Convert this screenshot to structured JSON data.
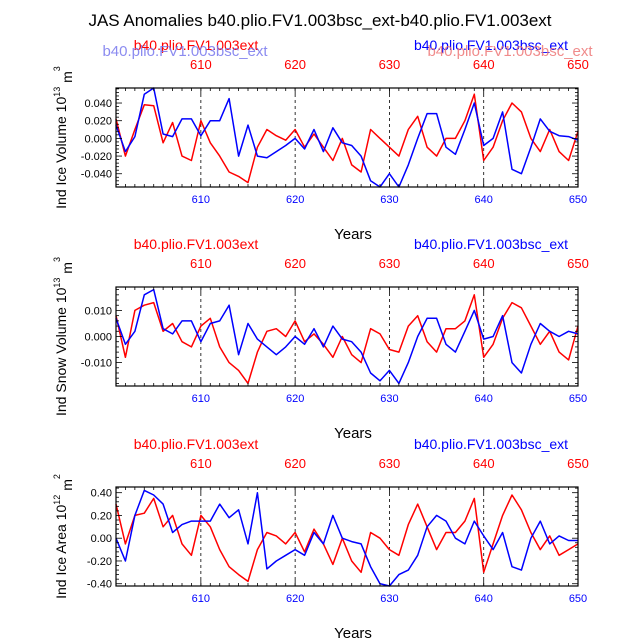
{
  "title": "JAS Anomalies b40.plio.FV1.003bsc_ext-b40.plio.FV1.003ext",
  "overlay_labels": {
    "red_faded": "b40.plio.FV1.003bsc_ext",
    "blue_faded": "b40.plio.FV1.003bsc_ext"
  },
  "colors": {
    "red": "#ff0000",
    "blue": "#0000ff",
    "axis": "#000000",
    "grid": "#000000"
  },
  "chart_data": [
    {
      "type": "line",
      "panel": "ice-volume",
      "left_label": "b40.plio.FV1.003ext",
      "right_label": "b40.plio.FV1.003bsc_ext",
      "ylabel_main": "Ind Ice Volume 10",
      "ylabel_exp": "13",
      "ylabel_unit": "m",
      "ylabel_unit_exp": "3",
      "xlabel": "Years",
      "xlim": [
        601,
        650
      ],
      "ylim": [
        -0.055,
        0.057
      ],
      "yticks": [
        -0.04,
        -0.02,
        0.0,
        0.02,
        0.04
      ],
      "ytick_labels": [
        "-0.040",
        "-0.020",
        "0.000",
        "0.020",
        "0.040"
      ],
      "xticks": [
        610,
        620,
        630,
        640,
        650
      ],
      "xtick_labels": [
        "610",
        "620",
        "630",
        "640",
        "650"
      ],
      "vlines": [
        610,
        620,
        630,
        640
      ],
      "x": [
        601,
        602,
        603,
        604,
        605,
        606,
        607,
        608,
        609,
        610,
        611,
        612,
        613,
        614,
        615,
        616,
        617,
        618,
        619,
        620,
        621,
        622,
        623,
        624,
        625,
        626,
        627,
        628,
        629,
        630,
        631,
        632,
        633,
        634,
        635,
        636,
        637,
        638,
        639,
        640,
        641,
        642,
        643,
        644,
        645,
        646,
        647,
        648,
        649,
        650
      ],
      "series": [
        {
          "name": "b40.plio.FV1.003ext",
          "color": "#ff0000",
          "values": [
            0.022,
            -0.02,
            0.01,
            0.038,
            0.037,
            -0.005,
            0.018,
            -0.02,
            -0.025,
            0.02,
            -0.005,
            -0.02,
            -0.038,
            -0.043,
            -0.05,
            -0.01,
            0.01,
            0.003,
            -0.002,
            0.01,
            -0.01,
            0.005,
            -0.01,
            -0.025,
            0.0,
            -0.03,
            -0.038,
            0.01,
            0.0,
            -0.01,
            -0.02,
            0.01,
            0.025,
            -0.01,
            -0.02,
            0.0,
            0.0,
            0.02,
            0.05,
            -0.025,
            -0.01,
            0.02,
            0.04,
            0.03,
            0.0,
            -0.015,
            0.01,
            -0.015,
            -0.025,
            0.008
          ]
        },
        {
          "name": "b40.plio.FV1.003bsc_ext",
          "color": "#0000ff",
          "values": [
            0.015,
            -0.015,
            0.002,
            0.05,
            0.057,
            0.005,
            0.002,
            0.022,
            0.022,
            0.003,
            0.02,
            0.02,
            0.045,
            -0.02,
            0.015,
            -0.02,
            -0.022,
            -0.015,
            -0.008,
            0.0,
            -0.012,
            0.01,
            -0.015,
            0.012,
            -0.005,
            -0.008,
            -0.02,
            -0.048,
            -0.055,
            -0.04,
            -0.055,
            -0.03,
            0.0,
            0.028,
            0.028,
            -0.01,
            -0.018,
            0.01,
            0.04,
            -0.008,
            0.0,
            0.03,
            -0.035,
            -0.04,
            -0.01,
            0.022,
            0.008,
            0.003,
            0.002,
            -0.002
          ]
        }
      ]
    },
    {
      "type": "line",
      "panel": "snow-volume",
      "left_label": "b40.plio.FV1.003ext",
      "right_label": "b40.plio.FV1.003bsc_ext",
      "ylabel_main": "Ind Snow Volume 10",
      "ylabel_exp": "13",
      "ylabel_unit": "m",
      "ylabel_unit_exp": "3",
      "xlabel": "Years",
      "xlim": [
        601,
        650
      ],
      "ylim": [
        -0.019,
        0.019
      ],
      "yticks": [
        -0.01,
        0.0,
        0.01
      ],
      "ytick_labels": [
        "-0.010",
        "0.000",
        "0.010"
      ],
      "xticks": [
        610,
        620,
        630,
        640,
        650
      ],
      "xtick_labels": [
        "610",
        "620",
        "630",
        "640",
        "650"
      ],
      "vlines": [
        610,
        620,
        630,
        640
      ],
      "x": [
        601,
        602,
        603,
        604,
        605,
        606,
        607,
        608,
        609,
        610,
        611,
        612,
        613,
        614,
        615,
        616,
        617,
        618,
        619,
        620,
        621,
        622,
        623,
        624,
        625,
        626,
        627,
        628,
        629,
        630,
        631,
        632,
        633,
        634,
        635,
        636,
        637,
        638,
        639,
        640,
        641,
        642,
        643,
        644,
        645,
        646,
        647,
        648,
        649,
        650
      ],
      "series": [
        {
          "name": "b40.plio.FV1.003ext",
          "color": "#ff0000",
          "values": [
            0.008,
            -0.008,
            0.01,
            0.012,
            0.013,
            0.002,
            0.005,
            -0.002,
            -0.004,
            0.004,
            0.007,
            -0.004,
            -0.01,
            -0.013,
            -0.018,
            -0.006,
            0.002,
            0.003,
            0.0,
            0.006,
            -0.002,
            0.001,
            -0.003,
            -0.008,
            0.0,
            -0.007,
            -0.01,
            0.003,
            0.001,
            -0.005,
            -0.006,
            0.004,
            0.008,
            -0.002,
            -0.006,
            0.003,
            0.003,
            0.006,
            0.016,
            -0.008,
            -0.003,
            0.007,
            0.013,
            0.011,
            0.004,
            -0.003,
            0.002,
            -0.006,
            -0.009,
            0.004
          ]
        },
        {
          "name": "b40.plio.FV1.003bsc_ext",
          "color": "#0000ff",
          "values": [
            0.007,
            -0.003,
            0.002,
            0.016,
            0.018,
            0.003,
            0.001,
            0.006,
            0.006,
            -0.002,
            0.005,
            0.006,
            0.012,
            -0.007,
            0.005,
            -0.001,
            -0.004,
            -0.007,
            -0.004,
            0.0,
            -0.003,
            0.003,
            -0.004,
            0.004,
            -0.001,
            -0.002,
            -0.006,
            -0.014,
            -0.017,
            -0.013,
            -0.018,
            -0.01,
            0.0,
            0.007,
            0.007,
            -0.003,
            -0.006,
            0.002,
            0.01,
            -0.001,
            0.0,
            0.008,
            -0.01,
            -0.014,
            -0.003,
            0.005,
            0.002,
            0.0,
            0.002,
            0.001
          ]
        }
      ]
    },
    {
      "type": "line",
      "panel": "ice-area",
      "left_label": "b40.plio.FV1.003ext",
      "right_label": "b40.plio.FV1.003bsc_ext",
      "ylabel_main": "Ind Ice Area 10",
      "ylabel_exp": "12",
      "ylabel_unit": "m",
      "ylabel_unit_exp": "2",
      "xlabel": "Years",
      "xlim": [
        601,
        650
      ],
      "ylim": [
        -0.42,
        0.45
      ],
      "yticks": [
        -0.4,
        -0.2,
        0.0,
        0.2,
        0.4
      ],
      "ytick_labels": [
        "-0.40",
        "-0.20",
        "0.00",
        "0.20",
        "0.40"
      ],
      "xticks": [
        610,
        620,
        630,
        640,
        650
      ],
      "xtick_labels": [
        "610",
        "620",
        "630",
        "640",
        "650"
      ],
      "vlines": [
        610,
        620,
        630,
        640
      ],
      "x": [
        601,
        602,
        603,
        604,
        605,
        606,
        607,
        608,
        609,
        610,
        611,
        612,
        613,
        614,
        615,
        616,
        617,
        618,
        619,
        620,
        621,
        622,
        623,
        624,
        625,
        626,
        627,
        628,
        629,
        630,
        631,
        632,
        633,
        634,
        635,
        636,
        637,
        638,
        639,
        640,
        641,
        642,
        643,
        644,
        645,
        646,
        647,
        648,
        649,
        650
      ],
      "series": [
        {
          "name": "b40.plio.FV1.003ext",
          "color": "#ff0000",
          "values": [
            0.3,
            -0.05,
            0.2,
            0.22,
            0.35,
            0.1,
            0.2,
            -0.05,
            -0.15,
            0.2,
            0.1,
            -0.1,
            -0.25,
            -0.32,
            -0.38,
            -0.1,
            0.05,
            0.02,
            -0.05,
            0.05,
            -0.12,
            0.08,
            -0.05,
            -0.23,
            0.0,
            -0.2,
            -0.3,
            0.05,
            0.0,
            -0.1,
            -0.15,
            0.12,
            0.3,
            0.1,
            -0.1,
            0.05,
            0.05,
            0.15,
            0.35,
            -0.3,
            -0.05,
            0.2,
            0.38,
            0.25,
            0.05,
            -0.1,
            0.02,
            -0.15,
            -0.1,
            -0.05
          ]
        },
        {
          "name": "b40.plio.FV1.003bsc_ext",
          "color": "#0000ff",
          "values": [
            0.0,
            -0.2,
            0.2,
            0.42,
            0.38,
            0.3,
            0.05,
            0.12,
            0.15,
            0.15,
            0.15,
            0.3,
            0.18,
            0.25,
            -0.05,
            0.4,
            -0.27,
            -0.2,
            -0.15,
            -0.1,
            -0.15,
            0.05,
            -0.05,
            0.2,
            0.0,
            -0.03,
            -0.05,
            -0.25,
            -0.4,
            -0.42,
            -0.32,
            -0.28,
            -0.15,
            0.1,
            0.2,
            0.15,
            0.0,
            -0.05,
            0.15,
            0.02,
            -0.1,
            0.05,
            -0.25,
            -0.28,
            0.0,
            0.15,
            -0.05,
            0.02,
            -0.02,
            -0.02
          ]
        }
      ]
    }
  ]
}
